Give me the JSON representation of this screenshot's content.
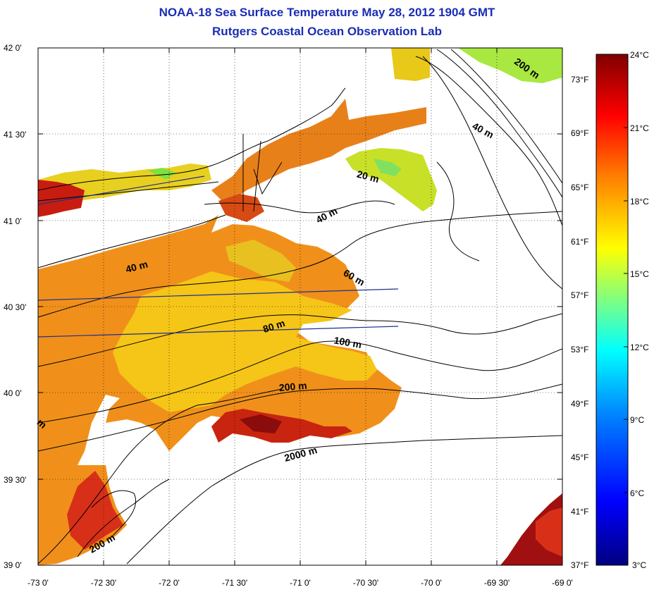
{
  "header": {
    "title": "NOAA-18 Sea Surface Temperature May 28, 2012 1904 GMT",
    "subtitle": "Rutgers Coastal Ocean Observation Lab"
  },
  "map": {
    "x_ticks": [
      "-73 0'",
      "-72 30'",
      "-72 0'",
      "-71 30'",
      "-71 0'",
      "-70 30'",
      "-70 0'",
      "-69 30'",
      "-69 0'"
    ],
    "y_ticks": [
      "42 0'",
      "41 30'",
      "41 0'",
      "40 30'",
      "40 0'",
      "39 30'",
      "39 0'"
    ],
    "fahrenheit_ticks": [
      "73°F",
      "69°F",
      "65°F",
      "61°F",
      "57°F",
      "53°F",
      "49°F",
      "45°F",
      "41°F",
      "37°F"
    ],
    "contour_labels": [
      "200 m",
      "40 m",
      "20 m",
      "40 m",
      "40 m",
      "60 m",
      "80 m",
      "100 m",
      "200 m",
      "2000 m",
      "200 m",
      "m"
    ],
    "colors": {
      "land_contour": "#000000",
      "grid": "#000000",
      "transect": "#1f2f8f"
    }
  },
  "colorbar": {
    "labels": [
      "24°C",
      "21°C",
      "18°C",
      "15°C",
      "12°C",
      "9°C",
      "6°C",
      "3°C"
    ],
    "colors": [
      "#7f0000",
      "#ff0000",
      "#ff7f00",
      "#ffff00",
      "#00ffff",
      "#0080ff",
      "#0000ff",
      "#00007f"
    ]
  }
}
